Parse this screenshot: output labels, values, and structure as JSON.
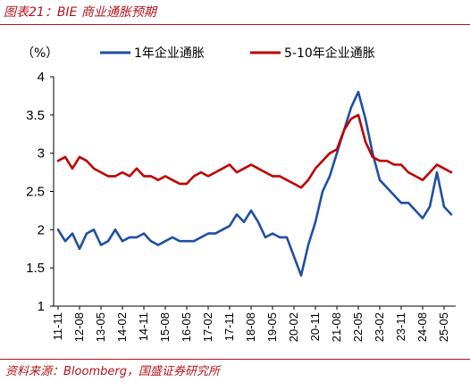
{
  "header": {
    "title": "图表21：BIE 商业通胀预期"
  },
  "footer": {
    "source": "资料来源：Bloomberg，国盛证券研究所"
  },
  "colors": {
    "series_1y": "#1f4fa3",
    "series_5_10y": "#c00000",
    "accent": "#b3141b"
  },
  "chart_data": {
    "type": "line",
    "title": "BIE 商业通胀预期",
    "ylabel": "（%）",
    "ylim": [
      1,
      4
    ],
    "yticks": [
      1,
      1.5,
      2,
      2.5,
      3,
      3.5,
      4
    ],
    "xticks": [
      "11-11",
      "12-08",
      "13-05",
      "14-02",
      "14-11",
      "15-08",
      "16-05",
      "17-02",
      "17-11",
      "18-08",
      "19-05",
      "20-02",
      "20-11",
      "21-08",
      "22-05",
      "23-02",
      "23-11",
      "24-08",
      "25-05"
    ],
    "legend_position": "top",
    "grid": false,
    "x": [
      "11-11",
      "12-02",
      "12-05",
      "12-08",
      "12-11",
      "13-02",
      "13-05",
      "13-08",
      "13-11",
      "14-02",
      "14-05",
      "14-08",
      "14-11",
      "15-02",
      "15-05",
      "15-08",
      "15-11",
      "16-02",
      "16-05",
      "16-08",
      "16-11",
      "17-02",
      "17-05",
      "17-08",
      "17-11",
      "18-02",
      "18-05",
      "18-08",
      "18-11",
      "19-02",
      "19-05",
      "19-08",
      "19-11",
      "20-02",
      "20-05",
      "20-08",
      "20-11",
      "21-02",
      "21-05",
      "21-08",
      "21-11",
      "22-02",
      "22-05",
      "22-08",
      "22-11",
      "23-02",
      "23-05",
      "23-08",
      "23-11",
      "24-02",
      "24-05",
      "24-08",
      "24-11",
      "25-02",
      "25-05",
      "25-08"
    ],
    "series": [
      {
        "name": "1年企业通胀",
        "values": [
          2.0,
          1.85,
          1.95,
          1.75,
          1.95,
          2.0,
          1.8,
          1.85,
          2.0,
          1.85,
          1.9,
          1.9,
          1.95,
          1.85,
          1.8,
          1.85,
          1.9,
          1.85,
          1.85,
          1.85,
          1.9,
          1.95,
          1.95,
          2.0,
          2.05,
          2.2,
          2.1,
          2.25,
          2.1,
          1.9,
          1.95,
          1.9,
          1.9,
          1.65,
          1.4,
          1.8,
          2.1,
          2.5,
          2.7,
          3.0,
          3.3,
          3.6,
          3.8,
          3.45,
          3.0,
          2.65,
          2.55,
          2.45,
          2.35,
          2.35,
          2.25,
          2.15,
          2.3,
          2.75,
          2.3,
          2.2
        ]
      },
      {
        "name": "5-10年企业通胀",
        "values": [
          2.9,
          2.95,
          2.8,
          2.95,
          2.9,
          2.8,
          2.75,
          2.7,
          2.7,
          2.75,
          2.7,
          2.8,
          2.7,
          2.7,
          2.65,
          2.7,
          2.65,
          2.6,
          2.6,
          2.7,
          2.75,
          2.7,
          2.75,
          2.8,
          2.85,
          2.75,
          2.8,
          2.85,
          2.8,
          2.75,
          2.7,
          2.7,
          2.65,
          2.6,
          2.55,
          2.65,
          2.8,
          2.9,
          3.0,
          3.05,
          3.3,
          3.45,
          3.5,
          3.15,
          2.95,
          2.9,
          2.9,
          2.85,
          2.85,
          2.75,
          2.7,
          2.65,
          2.75,
          2.85,
          2.8,
          2.75
        ]
      }
    ]
  }
}
